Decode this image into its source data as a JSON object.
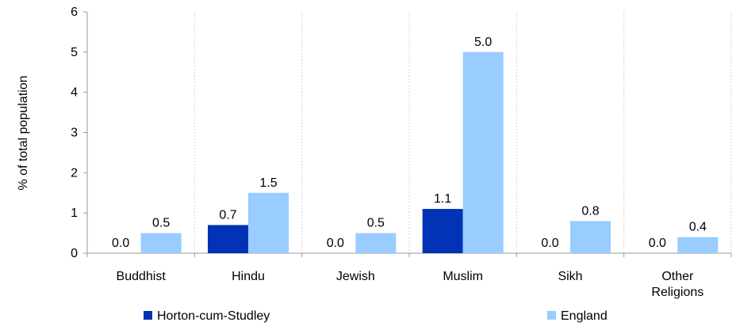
{
  "chart_data": {
    "type": "bar",
    "categories": [
      "Buddhist",
      "Hindu",
      "Jewish",
      "Muslim",
      "Sikh",
      "Other Religions"
    ],
    "series": [
      {
        "name": "Horton-cum-Studley",
        "values": [
          0.0,
          0.7,
          0.0,
          1.1,
          0.0,
          0.0
        ],
        "labels": [
          "0.0",
          "0.7",
          "0.0",
          "1.1",
          "0.0",
          "0.0"
        ],
        "color": "#0033b5"
      },
      {
        "name": "England",
        "values": [
          0.5,
          1.5,
          0.5,
          5.0,
          0.8,
          0.4
        ],
        "labels": [
          "0.5",
          "1.5",
          "0.5",
          "5.0",
          "0.8",
          "0.4"
        ],
        "color": "#99ccff"
      }
    ],
    "ylabel": "% of total population",
    "ylim": [
      0,
      6
    ],
    "yticks": [
      "0",
      "1",
      "2",
      "3",
      "4",
      "5",
      "6"
    ],
    "grid": true,
    "legend": "bottom"
  }
}
